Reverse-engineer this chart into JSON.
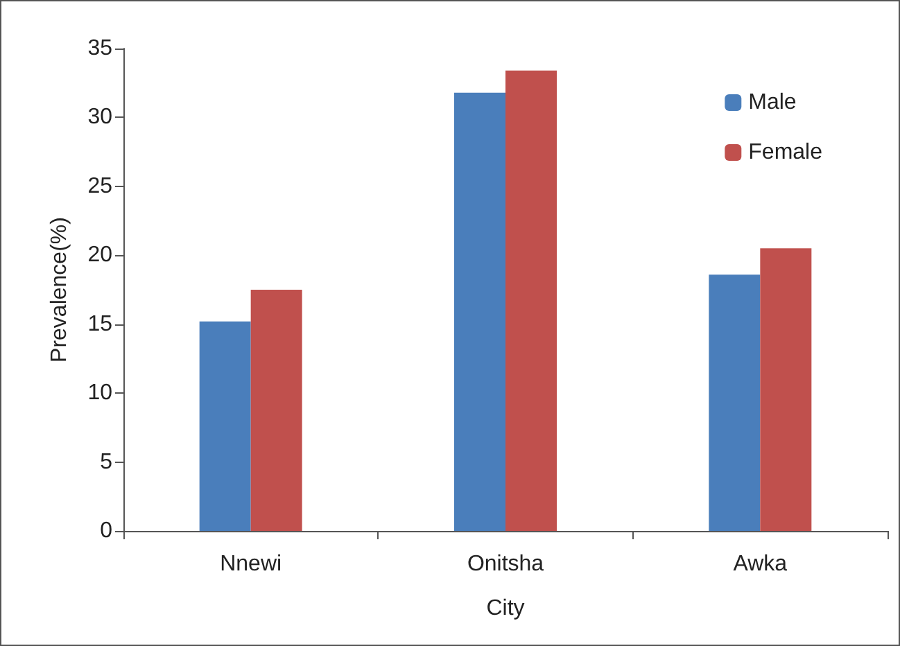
{
  "chart_data": {
    "type": "bar",
    "xlabel": "City",
    "ylabel": "Prevalence(%)",
    "categories": [
      "Nnewi",
      "Onitsha",
      "Awka"
    ],
    "series": [
      {
        "name": "Male",
        "color": "#4a7ebb",
        "values": [
          15.2,
          31.8,
          18.6
        ]
      },
      {
        "name": "Female",
        "color": "#c0504d",
        "values": [
          17.5,
          33.4,
          20.5
        ]
      }
    ],
    "ylim": [
      0,
      35
    ],
    "yticks": [
      0,
      5,
      10,
      15,
      20,
      25,
      30,
      35
    ],
    "grid": false,
    "legend": "top right"
  }
}
